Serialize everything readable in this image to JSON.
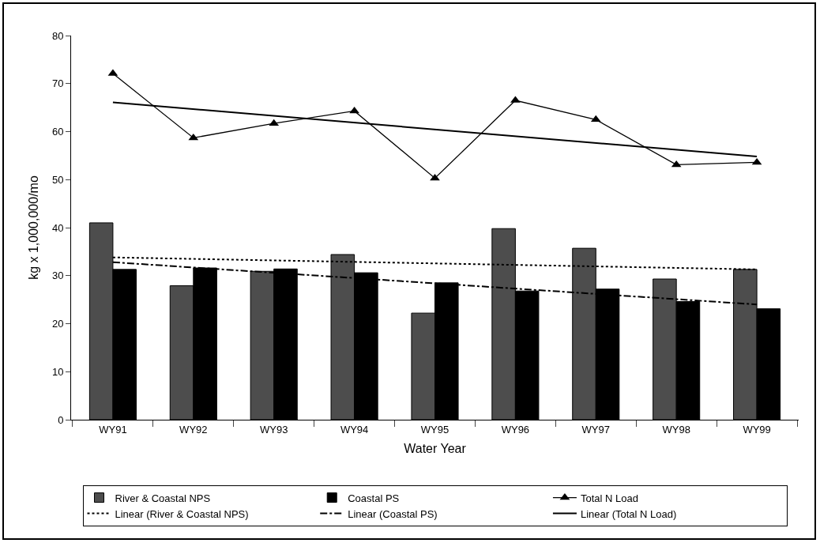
{
  "chart_data": {
    "type": "bar",
    "xlabel": "Water Year",
    "ylabel": "kg x 1,000,000/mo",
    "categories": [
      "WY91",
      "WY92",
      "WY93",
      "WY94",
      "WY95",
      "WY96",
      "WY97",
      "WY98",
      "WY99"
    ],
    "series": [
      {
        "name": "River & Coastal NPS",
        "color": "#4d4d4d",
        "values": [
          41.0,
          27.9,
          30.9,
          34.4,
          22.2,
          39.8,
          35.7,
          29.3,
          31.3
        ]
      },
      {
        "name": "Coastal PS",
        "color": "#000000",
        "values": [
          31.3,
          31.6,
          31.4,
          30.6,
          28.5,
          26.8,
          27.2,
          24.6,
          23.1
        ]
      },
      {
        "name": "Total N Load",
        "type": "line",
        "color": "#000000",
        "marker": "triangle",
        "line_style": "solid",
        "values": [
          72.1,
          58.7,
          61.7,
          64.3,
          50.3,
          66.5,
          62.5,
          53.1,
          53.6
        ]
      },
      {
        "name": "Linear (River & Coastal NPS)",
        "type": "line",
        "color": "#000000",
        "marker": "none",
        "line_style": "dotted",
        "x": [
          "WY91",
          "WY99"
        ],
        "values": [
          33.8,
          31.3
        ]
      },
      {
        "name": "Linear (Coastal PS)",
        "type": "line",
        "color": "#000000",
        "marker": "none",
        "line_style": "dashed",
        "x": [
          "WY91",
          "WY99"
        ],
        "values": [
          32.8,
          24.0
        ]
      },
      {
        "name": "Linear (Total N Load)",
        "type": "line",
        "color": "#000000",
        "marker": "none",
        "line_style": "solid",
        "x": [
          "WY91",
          "WY99"
        ],
        "values": [
          66.1,
          54.8
        ]
      }
    ],
    "ylim": [
      0,
      80
    ],
    "yticks": [
      0,
      10,
      20,
      30,
      40,
      50,
      60,
      70,
      80
    ],
    "grid": false,
    "legend": "bottom"
  }
}
